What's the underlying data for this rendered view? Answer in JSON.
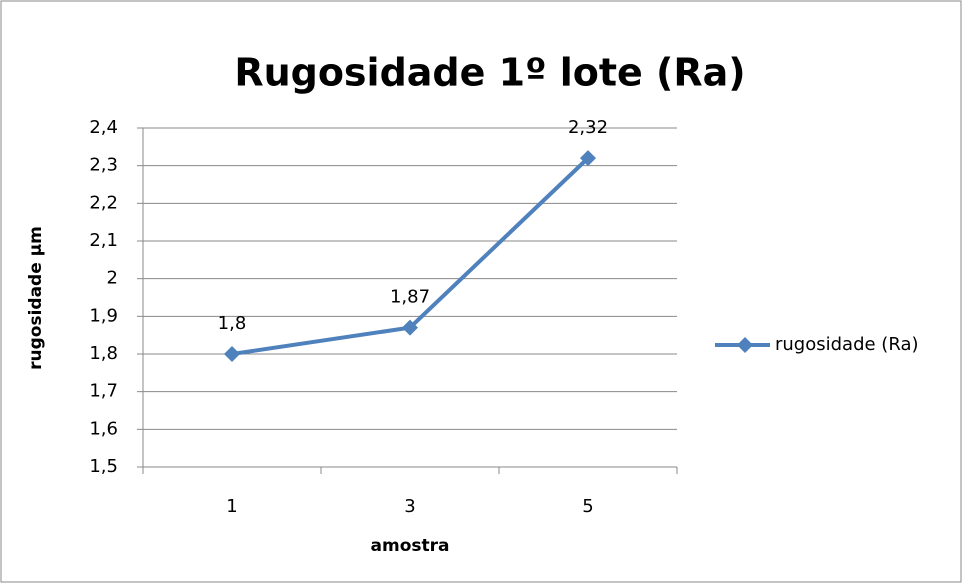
{
  "chart_data": {
    "type": "line",
    "title": "Rugosidade 1º lote (Ra)",
    "x_label": "amostra",
    "y_label": "rugosidade µm",
    "categories": [
      "1",
      "3",
      "5"
    ],
    "series": [
      {
        "name": "rugosidade (Ra)",
        "color": "#4f81bd",
        "values": [
          1.8,
          1.87,
          2.32
        ],
        "value_labels": [
          "1,8",
          "1,87",
          "2,32"
        ]
      }
    ],
    "ylim": [
      1.5,
      2.4
    ],
    "yticks": [
      {
        "value": 1.5,
        "label": "1,5"
      },
      {
        "value": 1.6,
        "label": "1,6"
      },
      {
        "value": 1.7,
        "label": "1,7"
      },
      {
        "value": 1.8,
        "label": "1,8"
      },
      {
        "value": 1.9,
        "label": "1,9"
      },
      2,
      {
        "value": 2.1,
        "label": "2,1"
      },
      {
        "value": 2.2,
        "label": "2,2"
      },
      {
        "value": 2.3,
        "label": "2,3"
      },
      {
        "value": 2.4,
        "label": "2,4"
      }
    ],
    "grid": true,
    "legend": "right"
  }
}
